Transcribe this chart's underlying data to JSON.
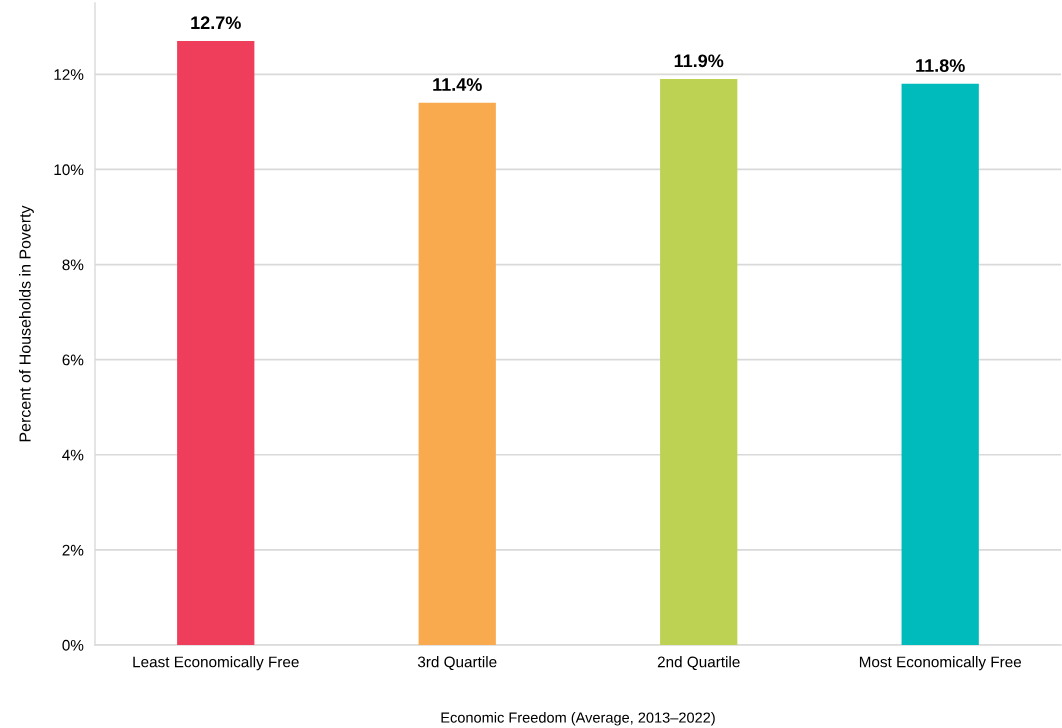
{
  "chart_data": {
    "type": "bar",
    "categories": [
      "Least Economically Free",
      "3rd Quartile",
      "2nd Quartile",
      "Most Economically Free"
    ],
    "values": [
      12.7,
      11.4,
      11.9,
      11.8
    ],
    "colors": [
      "#ef3e5b",
      "#f9aa4e",
      "#bdd152",
      "#00bbbb"
    ],
    "value_labels": [
      "12.7%",
      "11.4%",
      "11.9%",
      "11.8%"
    ],
    "xlabel": "Economic Freedom (Average, 2013–2022)",
    "ylabel": "Percent of Households in Poverty",
    "ylim": [
      0,
      13.5
    ],
    "yticks": [
      {
        "value": 0,
        "label": "0%"
      },
      {
        "value": 2,
        "label": "2%"
      },
      {
        "value": 4,
        "label": "4%"
      },
      {
        "value": 6,
        "label": "6%"
      },
      {
        "value": 8,
        "label": "8%"
      },
      {
        "value": 10,
        "label": "10%"
      },
      {
        "value": 12,
        "label": "12%"
      }
    ],
    "grid": "y",
    "legend": false
  }
}
